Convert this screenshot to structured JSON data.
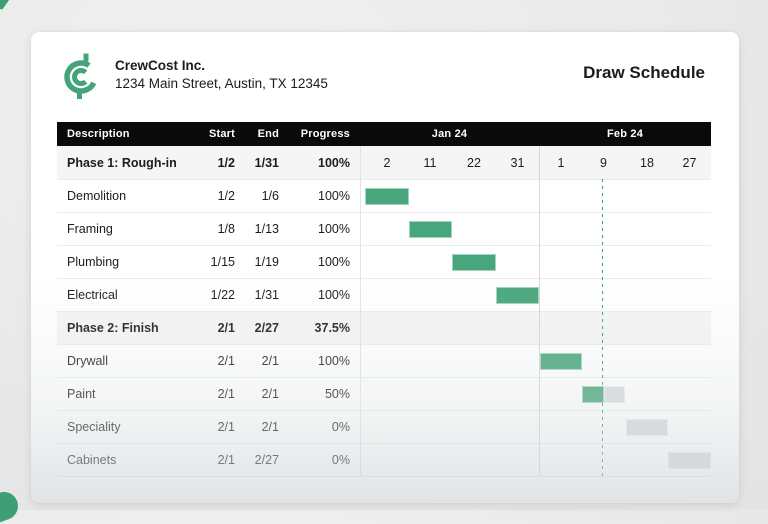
{
  "document": {
    "title": "Draw Schedule",
    "company": {
      "name": "CrewCost Inc.",
      "address": "1234 Main Street, Austin, TX 12345",
      "logo_icon": "crewcost-c-logo"
    }
  },
  "schedule_table": {
    "headers": {
      "description": "Description",
      "start": "Start",
      "end": "End",
      "progress": "Progress"
    },
    "months": [
      {
        "label": "Jan 24",
        "ticks": [
          "2",
          "11",
          "22",
          "31"
        ]
      },
      {
        "label": "Feb 24",
        "ticks": [
          "1",
          "9",
          "18",
          "27"
        ]
      }
    ],
    "rows": [
      {
        "type": "phase",
        "description": "Phase 1: Rough-in",
        "start": "1/2",
        "end": "1/31",
        "progress": "100%",
        "bar": null
      },
      {
        "type": "task",
        "description": "Demolition",
        "start": "1/2",
        "end": "1/6",
        "progress": "100%",
        "bar": {
          "col": 0,
          "done": 1
        }
      },
      {
        "type": "task",
        "description": "Framing",
        "start": "1/8",
        "end": "1/13",
        "progress": "100%",
        "bar": {
          "col": 1,
          "done": 1
        }
      },
      {
        "type": "task",
        "description": "Plumbing",
        "start": "1/15",
        "end": "1/19",
        "progress": "100%",
        "bar": {
          "col": 2,
          "done": 1
        }
      },
      {
        "type": "task",
        "description": "Electrical",
        "start": "1/22",
        "end": "1/31",
        "progress": "100%",
        "bar": {
          "col": 3,
          "done": 1
        }
      },
      {
        "type": "phase",
        "description": "Phase 2: Finish",
        "start": "2/1",
        "end": "2/27",
        "progress": "37.5%",
        "bar": null
      },
      {
        "type": "task",
        "description": "Drywall",
        "start": "2/1",
        "end": "2/1",
        "progress": "100%",
        "bar": {
          "col": 4,
          "done": 1
        }
      },
      {
        "type": "task",
        "description": "Paint",
        "start": "2/1",
        "end": "2/1",
        "progress": "50%",
        "bar": {
          "col": 5,
          "done": 0.5
        }
      },
      {
        "type": "task",
        "description": "Speciality",
        "start": "2/1",
        "end": "2/1",
        "progress": "0%",
        "bar": {
          "col": 6,
          "done": 0
        }
      },
      {
        "type": "task",
        "description": "Cabinets",
        "start": "2/1",
        "end": "2/27",
        "progress": "0%",
        "bar": {
          "col": 7,
          "done": 0
        }
      }
    ]
  },
  "colors": {
    "bar_done": "#48a67c",
    "bar_remaining": "#d9dbde",
    "today_line": "#2fa37c",
    "header_band": "#0a0a0a",
    "phase_row_bg": "#f5f5f6",
    "logo_green": "#44a379"
  },
  "chart_data": {
    "type": "table",
    "subtype": "gantt",
    "title": "Draw Schedule",
    "timeline_months": [
      "Jan 24",
      "Feb 24"
    ],
    "timeline_ticks": [
      2,
      11,
      22,
      31,
      1,
      9,
      18,
      27
    ],
    "tasks": [
      {
        "name": "Phase 1: Rough-in",
        "start": "1/2",
        "end": "1/31",
        "progress_pct": 100,
        "is_phase": true
      },
      {
        "name": "Demolition",
        "start": "1/2",
        "end": "1/6",
        "progress_pct": 100,
        "is_phase": false
      },
      {
        "name": "Framing",
        "start": "1/8",
        "end": "1/13",
        "progress_pct": 100,
        "is_phase": false
      },
      {
        "name": "Plumbing",
        "start": "1/15",
        "end": "1/19",
        "progress_pct": 100,
        "is_phase": false
      },
      {
        "name": "Electrical",
        "start": "1/22",
        "end": "1/31",
        "progress_pct": 100,
        "is_phase": false
      },
      {
        "name": "Phase 2: Finish",
        "start": "2/1",
        "end": "2/27",
        "progress_pct": 37.5,
        "is_phase": true
      },
      {
        "name": "Drywall",
        "start": "2/1",
        "end": "2/1",
        "progress_pct": 100,
        "is_phase": false
      },
      {
        "name": "Paint",
        "start": "2/1",
        "end": "2/1",
        "progress_pct": 50,
        "is_phase": false
      },
      {
        "name": "Speciality",
        "start": "2/1",
        "end": "2/1",
        "progress_pct": 0,
        "is_phase": false
      },
      {
        "name": "Cabinets",
        "start": "2/1",
        "end": "2/27",
        "progress_pct": 0,
        "is_phase": false
      }
    ]
  }
}
